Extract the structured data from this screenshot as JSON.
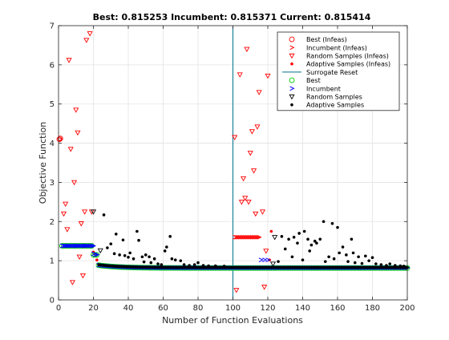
{
  "chart_data": {
    "type": "scatter",
    "title": "Best: 0.815253 Incumbent: 0.815371 Current: 0.815414",
    "xlabel": "Number of Function Evaluations",
    "ylabel": "Objective Function",
    "xlim": [
      0,
      200
    ],
    "ylim": [
      0,
      7
    ],
    "xticks": [
      0,
      20,
      40,
      60,
      80,
      100,
      120,
      140,
      160,
      180,
      200
    ],
    "yticks": [
      0,
      1,
      2,
      3,
      4,
      5,
      6,
      7
    ],
    "grid": true,
    "legend_position": "top-right",
    "surrogate_reset_x": [
      100
    ],
    "series": [
      {
        "name": "Best (Infeas)",
        "marker": "circle-open",
        "color": "#ff0000",
        "points": [
          [
            0.5,
            4.1
          ],
          [
            1,
            4.12
          ]
        ]
      },
      {
        "name": "Incumbent (Infeas)",
        "marker": "chevron",
        "color": "#ff0000",
        "points": [
          [
            1,
            4.1
          ],
          [
            101,
            1.6
          ],
          [
            102,
            1.6
          ],
          [
            103,
            1.6
          ],
          [
            104,
            1.6
          ],
          [
            105,
            1.6
          ],
          [
            106,
            1.6
          ],
          [
            107,
            1.6
          ],
          [
            108,
            1.6
          ],
          [
            109,
            1.6
          ],
          [
            110,
            1.6
          ],
          [
            111,
            1.6
          ],
          [
            112,
            1.6
          ],
          [
            113,
            1.6
          ],
          [
            114,
            1.6
          ],
          [
            115,
            1.6
          ]
        ]
      },
      {
        "name": "Random Samples (Infeas)",
        "marker": "triangle-down",
        "color": "#ff0000",
        "points": [
          [
            3,
            2.2
          ],
          [
            4,
            2.45
          ],
          [
            5,
            1.8
          ],
          [
            6,
            6.12
          ],
          [
            7,
            3.85
          ],
          [
            8,
            0.45
          ],
          [
            9,
            3.0
          ],
          [
            10,
            4.85
          ],
          [
            11,
            4.27
          ],
          [
            12,
            1.1
          ],
          [
            13,
            1.95
          ],
          [
            14,
            0.62
          ],
          [
            15,
            2.25
          ],
          [
            16,
            6.63
          ],
          [
            18,
            6.8
          ],
          [
            19,
            2.25
          ],
          [
            101,
            4.15
          ],
          [
            102,
            0.25
          ],
          [
            104,
            5.75
          ],
          [
            105,
            2.5
          ],
          [
            106,
            3.1
          ],
          [
            107,
            2.6
          ],
          [
            108,
            6.4
          ],
          [
            109,
            2.5
          ],
          [
            110,
            3.75
          ],
          [
            111,
            4.3
          ],
          [
            112,
            3.3
          ],
          [
            113,
            2.2
          ],
          [
            114,
            4.42
          ],
          [
            115,
            5.3
          ],
          [
            117,
            2.25
          ],
          [
            118,
            0.33
          ],
          [
            119,
            1.25
          ],
          [
            120,
            5.72
          ]
        ]
      },
      {
        "name": "Adaptive Samples (Infeas)",
        "marker": "point",
        "color": "#ff0000",
        "points": [
          [
            20,
            1.22
          ],
          [
            21,
            1.18
          ],
          [
            22,
            1.02
          ],
          [
            121,
            1.02
          ],
          [
            122,
            1.75
          ]
        ]
      },
      {
        "name": "Best",
        "marker": "circle-open",
        "color": "#00cc00",
        "points": [
          [
            2,
            1.38
          ],
          [
            21,
            1.15
          ],
          [
            25,
            0.87
          ],
          [
            40,
            0.84
          ],
          [
            60,
            0.83
          ],
          [
            80,
            0.82
          ],
          [
            100,
            0.82
          ],
          [
            130,
            0.82
          ],
          [
            160,
            0.82
          ],
          [
            200,
            0.815
          ]
        ]
      },
      {
        "name": "Incumbent",
        "marker": "chevron",
        "color": "#0000ff",
        "points": [
          [
            5,
            1.38
          ],
          [
            10,
            1.38
          ],
          [
            15,
            1.38
          ],
          [
            20,
            1.18
          ],
          [
            116,
            1.02
          ],
          [
            118,
            1.02
          ],
          [
            120,
            1.02
          ]
        ]
      },
      {
        "name": "Random Samples",
        "marker": "triangle-down",
        "color": "#000000",
        "points": [
          [
            20,
            2.25
          ],
          [
            24,
            1.26
          ],
          [
            123,
            0.92
          ],
          [
            124,
            1.6
          ]
        ]
      },
      {
        "name": "Adaptive Samples",
        "marker": "point",
        "color": "#000000",
        "points": [
          [
            26,
            2.17
          ],
          [
            28,
            1.33
          ],
          [
            30,
            1.43
          ],
          [
            32,
            1.18
          ],
          [
            33,
            1.68
          ],
          [
            35,
            1.15
          ],
          [
            37,
            1.53
          ],
          [
            38,
            1.13
          ],
          [
            40,
            1.09
          ],
          [
            41,
            1.2
          ],
          [
            43,
            1.05
          ],
          [
            45,
            1.75
          ],
          [
            46,
            1.52
          ],
          [
            48,
            1.1
          ],
          [
            49,
            0.97
          ],
          [
            50,
            1.15
          ],
          [
            52,
            1.1
          ],
          [
            53,
            0.95
          ],
          [
            55,
            1.05
          ],
          [
            57,
            0.92
          ],
          [
            59,
            0.9
          ],
          [
            61,
            1.25
          ],
          [
            62,
            1.35
          ],
          [
            64,
            1.62
          ],
          [
            65,
            1.05
          ],
          [
            67,
            1.02
          ],
          [
            70,
            1.0
          ],
          [
            72,
            0.9
          ],
          [
            75,
            0.88
          ],
          [
            78,
            0.9
          ],
          [
            80,
            0.95
          ],
          [
            83,
            0.88
          ],
          [
            86,
            0.87
          ],
          [
            90,
            0.87
          ],
          [
            95,
            0.86
          ],
          [
            126,
            0.98
          ],
          [
            128,
            1.62
          ],
          [
            130,
            1.3
          ],
          [
            132,
            1.55
          ],
          [
            134,
            1.1
          ],
          [
            135,
            1.6
          ],
          [
            137,
            1.45
          ],
          [
            138,
            1.7
          ],
          [
            140,
            1.02
          ],
          [
            141,
            1.75
          ],
          [
            143,
            1.55
          ],
          [
            144,
            1.25
          ],
          [
            145,
            1.4
          ],
          [
            147,
            1.5
          ],
          [
            148,
            1.45
          ],
          [
            150,
            1.55
          ],
          [
            152,
            2.0
          ],
          [
            153,
            0.98
          ],
          [
            155,
            1.1
          ],
          [
            157,
            1.95
          ],
          [
            158,
            1.05
          ],
          [
            160,
            1.85
          ],
          [
            161,
            1.2
          ],
          [
            163,
            1.35
          ],
          [
            165,
            1.15
          ],
          [
            166,
            0.98
          ],
          [
            168,
            1.55
          ],
          [
            169,
            1.2
          ],
          [
            170,
            0.95
          ],
          [
            172,
            1.1
          ],
          [
            174,
            0.93
          ],
          [
            176,
            1.12
          ],
          [
            178,
            1.0
          ],
          [
            180,
            1.08
          ],
          [
            182,
            0.92
          ],
          [
            185,
            0.9
          ],
          [
            188,
            0.88
          ],
          [
            190,
            0.92
          ],
          [
            193,
            0.88
          ],
          [
            196,
            0.87
          ],
          [
            198,
            0.86
          ]
        ]
      }
    ]
  }
}
